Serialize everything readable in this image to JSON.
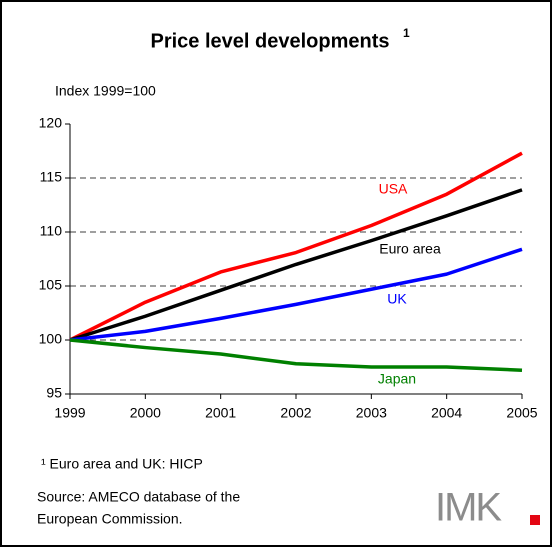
{
  "chart_data": {
    "type": "line",
    "title": "Price level developments",
    "title_superscript": "1",
    "y_label": "Index 1999=100",
    "x": [
      1999,
      2000,
      2001,
      2002,
      2003,
      2004,
      2005
    ],
    "xlim": [
      1999,
      2005
    ],
    "xticks": [
      1999,
      2000,
      2001,
      2002,
      2003,
      2004,
      2005
    ],
    "ylim": [
      95,
      120
    ],
    "yticks": [
      95,
      100,
      105,
      110,
      115,
      120
    ],
    "grid": true,
    "series": [
      {
        "name": "USA",
        "color": "#ff0000",
        "values": [
          100,
          103.5,
          106.3,
          108.1,
          110.6,
          113.5,
          117.3
        ]
      },
      {
        "name": "Euro area",
        "color": "#000000",
        "values": [
          100,
          102.2,
          104.6,
          107.0,
          109.2,
          111.5,
          113.9
        ]
      },
      {
        "name": "UK",
        "color": "#0000ff",
        "values": [
          100,
          100.8,
          102.0,
          103.3,
          104.7,
          106.1,
          108.4
        ]
      },
      {
        "name": "Japan",
        "color": "#008000",
        "values": [
          100,
          99.3,
          98.7,
          97.8,
          97.5,
          97.5,
          97.2
        ]
      }
    ],
    "footnote": "¹ Euro area and UK: HICP",
    "source": [
      "Source: AMECO database of the",
      "European Commission."
    ],
    "logo": "IMK"
  }
}
